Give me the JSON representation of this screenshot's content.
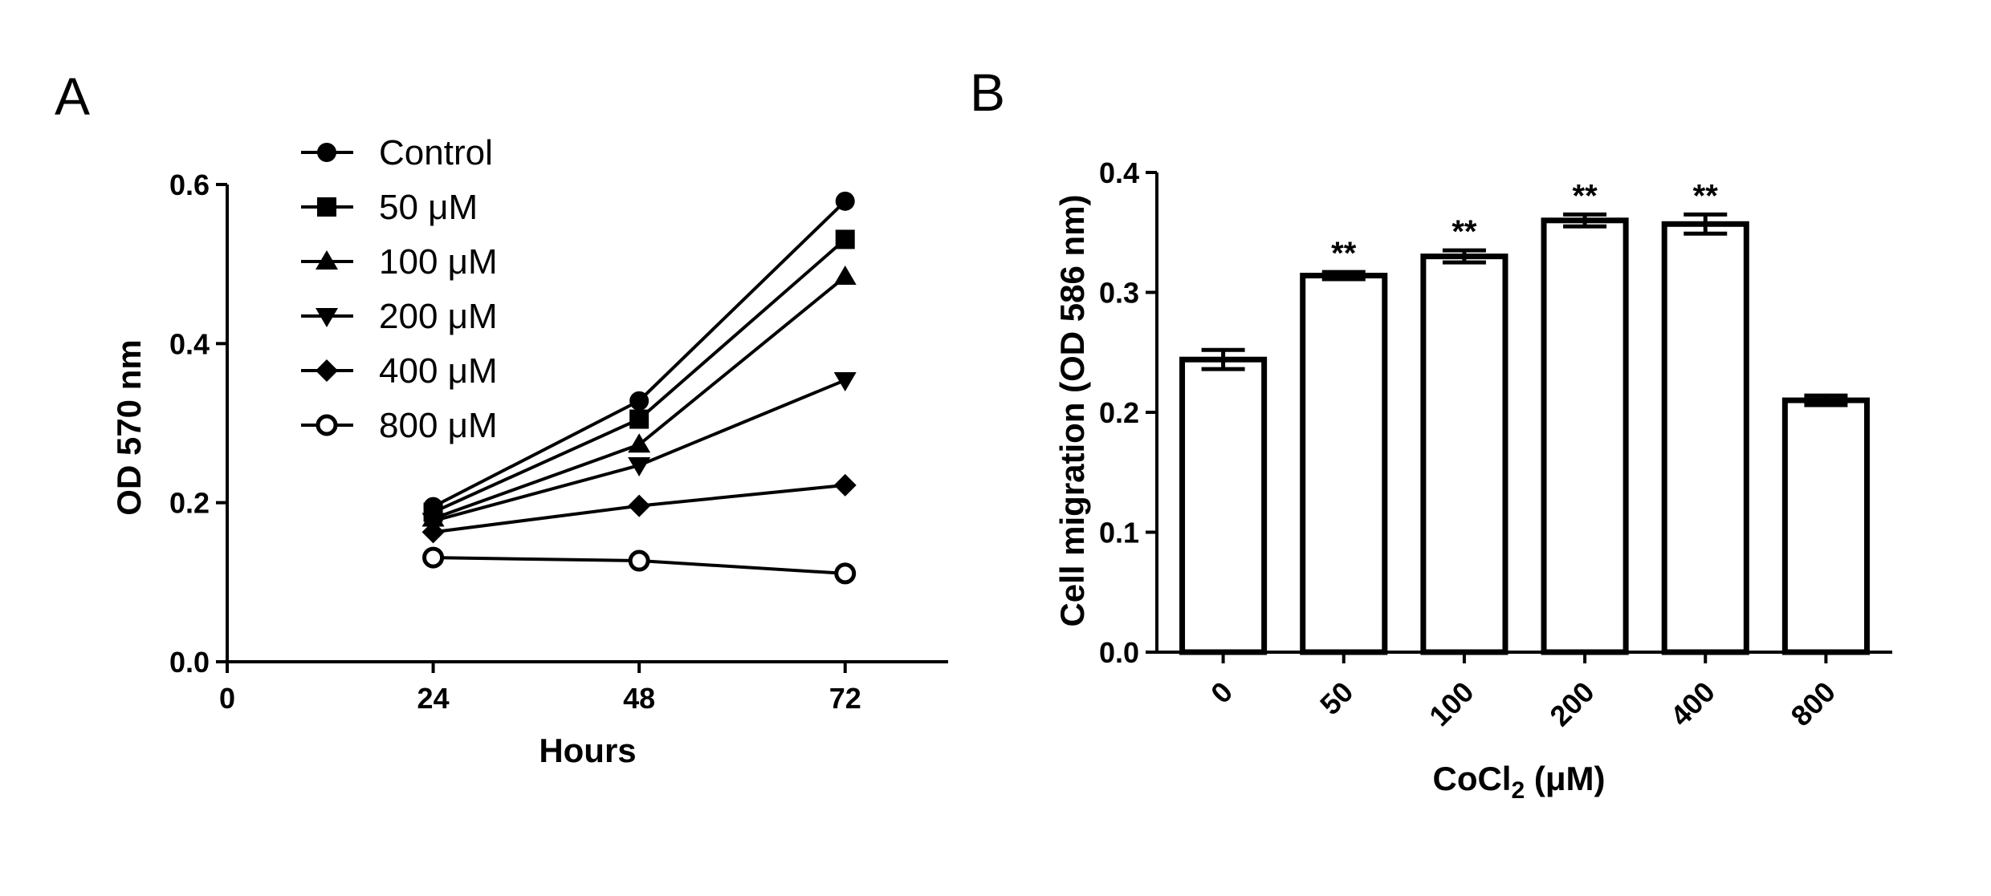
{
  "chart_data": [
    {
      "panel": "A",
      "type": "line",
      "xlabel": "Hours",
      "ylabel": "OD 570 nm",
      "xlim": [
        0,
        84
      ],
      "ylim": [
        0.0,
        0.6
      ],
      "xticks": [
        "0",
        "24",
        "48",
        "72"
      ],
      "yticks": [
        "0.0",
        "0.2",
        "0.4",
        "0.6"
      ],
      "x": [
        24,
        48,
        72
      ],
      "legend_position": "top-left",
      "grid": false,
      "series": [
        {
          "name": "Control",
          "marker": "circle",
          "values": [
            0.195,
            0.328,
            0.579
          ]
        },
        {
          "name": "50 μM",
          "marker": "square",
          "values": [
            0.188,
            0.305,
            0.531
          ]
        },
        {
          "name": "100 μM",
          "marker": "triangle-up",
          "values": [
            0.18,
            0.273,
            0.484
          ]
        },
        {
          "name": "200 μM",
          "marker": "triangle-down",
          "values": [
            0.177,
            0.247,
            0.354
          ]
        },
        {
          "name": "400 μM",
          "marker": "diamond",
          "values": [
            0.163,
            0.196,
            0.222
          ]
        },
        {
          "name": "800 μM",
          "marker": "open-circle",
          "values": [
            0.131,
            0.127,
            0.111
          ]
        }
      ]
    },
    {
      "panel": "B",
      "type": "bar",
      "xlabel_main": "CoCl",
      "xlabel_sub": "2",
      "xlabel_unit": " (μM)",
      "ylabel": "Cell migration (OD 586 nm)",
      "ylim": [
        0.0,
        0.4
      ],
      "yticks": [
        "0.0",
        "0.1",
        "0.2",
        "0.3",
        "0.4"
      ],
      "grid": false,
      "categories": [
        "0",
        "50",
        "100",
        "200",
        "400",
        "800"
      ],
      "values": [
        0.244,
        0.314,
        0.33,
        0.36,
        0.357,
        0.21
      ],
      "errors": [
        0.008,
        0.003,
        0.005,
        0.005,
        0.008,
        0.004
      ],
      "annotations": [
        "",
        "**",
        "**",
        "**",
        "**",
        ""
      ]
    }
  ]
}
